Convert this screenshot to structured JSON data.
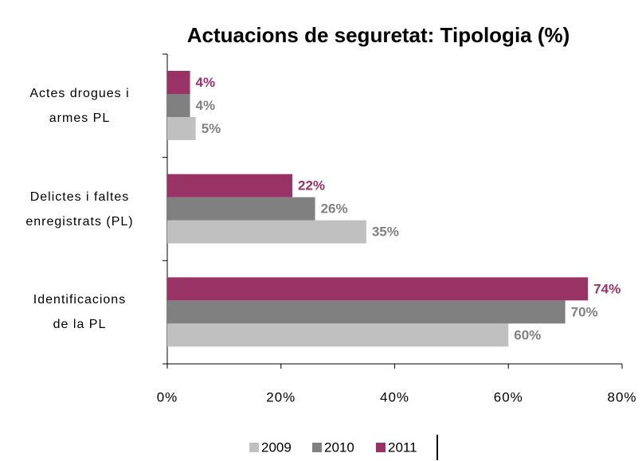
{
  "chart_data": {
    "type": "bar",
    "orientation": "horizontal",
    "title": "Actuacions de seguretat: Tipologia (%)",
    "categories": [
      "Actes drogues i\narmes PL",
      "Delictes i faltes\nenregistrats (PL)",
      "Identificacions\nde la PL"
    ],
    "series": [
      {
        "name": "2009",
        "color": "#c0c0c0",
        "values": [
          5,
          35,
          60
        ],
        "value_labels": [
          "5%",
          "35%",
          "60%"
        ]
      },
      {
        "name": "2010",
        "color": "#808080",
        "values": [
          4,
          26,
          70
        ],
        "value_labels": [
          "4%",
          "26%",
          "70%"
        ]
      },
      {
        "name": "2011",
        "color": "#993366",
        "values": [
          4,
          22,
          74
        ],
        "value_labels": [
          "4%",
          "22%",
          "74%"
        ]
      }
    ],
    "xlim": [
      0,
      80
    ],
    "xticks": [
      {
        "value": 0,
        "label": "0%"
      },
      {
        "value": 20,
        "label": "20%"
      },
      {
        "value": 40,
        "label": "40%"
      },
      {
        "value": 60,
        "label": "60%"
      },
      {
        "value": 80,
        "label": "80%"
      }
    ],
    "legend": "bottom"
  }
}
